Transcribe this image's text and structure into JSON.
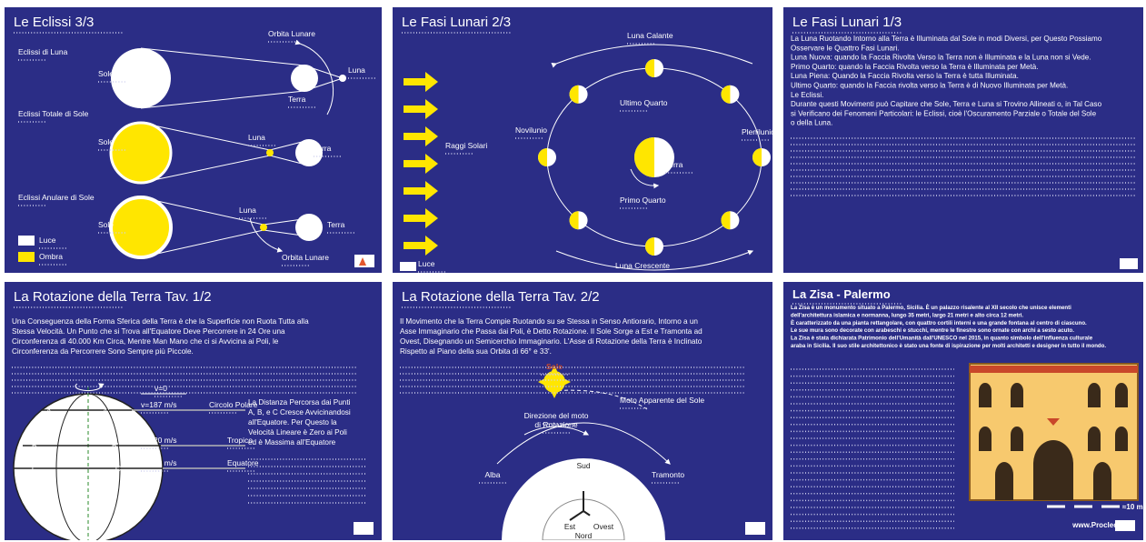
{
  "panels": [
    {
      "title": "Le Eclissi 3/3",
      "labels": [
        "Eclissi di Luna",
        "Orbita Lunare",
        "Sole",
        "Luna",
        "Terra",
        "Eclissi Totale di Sole",
        "Sole",
        "Luna",
        "Terra",
        "Eclissi Anulare di Sole",
        "Sole",
        "Luna",
        "Terra",
        "Orbita Lunare",
        "Luce",
        "Ombra"
      ]
    },
    {
      "title": "Le Fasi Lunari 2/3",
      "labels": [
        "Luna Calante",
        "Ultimo Quarto",
        "Novilunio",
        "Plenilunio",
        "Raggi Solari",
        "Terra",
        "Primo Quarto",
        "Luna Crescente",
        "Luce"
      ]
    },
    {
      "title": "Le Fasi Lunari 1/3",
      "text": [
        "La Luna Ruotando Intorno alla Terra è Illuminata dal Sole in modi Diversi, per Questo Possiamo",
        "Osservare le Quattro Fasi Lunari.",
        "Luna Nuova: quando la Faccia Rivolta Verso la Terra non è Illuminata e la Luna non si Vede.",
        "Primo Quarto: quando la Faccia Rivolta verso la Terra è Illuminata per Metà.",
        "Luna Piena: Quando la Faccia Rivolta verso la Terra è tutta Illuminata.",
        "Ultimo Quarto: quando la Faccia rivolta verso la Terra è di Nuovo Illuminata per Metà.",
        "Le Eclissi.",
        "Durante questi Movimenti può Capitare che Sole, Terra e Luna si Trovino Allineati o, in Tal Caso",
        "si Verificano dei Fenomeni Particolari: le Eclissi, cioè l'Oscuramento Parziale o Totale del Sole",
        "o della Luna."
      ]
    },
    {
      "title": "La Rotazione della Terra Tav. 1/2",
      "text": [
        "Una Conseguenza della Forma Sferica della Terra è che la Superficie non Ruota Tutta alla",
        "Stessa Velocità. Un Punto che si Trova all'Equatore Deve Percorrere in 24 Ore una",
        "Circonferenza di 40.000 Km Circa, Mentre Man Mano che ci si Avvicina ai Poli, le",
        "Circonferenza da Percorrere Sono Sempre più Piccole."
      ],
      "labels": [
        "A",
        "A'",
        "B",
        "B'",
        "C",
        "C'",
        "v=0",
        "v=187 m/s",
        "Circolo Polare",
        "v=420 m/s",
        "Tropico",
        "v=463 m/s",
        "Equatore"
      ],
      "note": [
        "La Distanza Percorsa dai Punti",
        "A, B, e C Cresce Avvicinandosi",
        "all'Equatore. Per Questo la",
        "Velocità Lineare è Zero ai Poli",
        "ed è Massima all'Equatore"
      ]
    },
    {
      "title": "La Rotazione della Terra Tav. 2/2",
      "text": [
        "Il Movimento che la Terra Compie Ruotando su se Stessa in Senso Antiorario, Intorno a un",
        "Asse Immaginario che Passa dai Poli, è Detto Rotazione. Il Sole Sorge a Est e Tramonta ad",
        "Ovest, Disegnando un Semicerchio Immaginario. L'Asse di Rotazione della Terra è Inclinato",
        "Rispetto al Piano della sua Orbita di 66° e 33'."
      ],
      "labels": [
        "Sole",
        "Moto Apparente del Sole",
        "Direzione del moto",
        "di Rotazione",
        "Alba",
        "Tramonto",
        "Sud",
        "Est",
        "Ovest",
        "Nord"
      ]
    },
    {
      "title": "La Zisa - Palermo",
      "text": [
        "La Zisa è un monumento situato a Palermo, Sicilia. È un palazzo risalente al XII secolo che unisce elementi",
        "dell'architettura islamica e normanna, lungo 35 metri, largo 21 metri e alto circa 12 metri.",
        "È caratterizzato da una pianta rettangolare, con quattro cortili interni e una grande fontana al centro di ciascuno.",
        "Le sue mura sono decorate con arabeschi e stucchi, mentre le finestre sono ornate con archi a sesto acuto.",
        "La Zisa è stata dichiarata Patrimonio dell'Umanità dall'UNESCO nel 2015, in quanto simbolo dell'influenza culturale",
        "araba in Sicilia. Il suo stile architettonico è stato una fonte di ispirazione per molti architetti e designer in tutto il mondo."
      ],
      "scale": "≈10 m",
      "site": "www.Proclechi.it"
    }
  ]
}
